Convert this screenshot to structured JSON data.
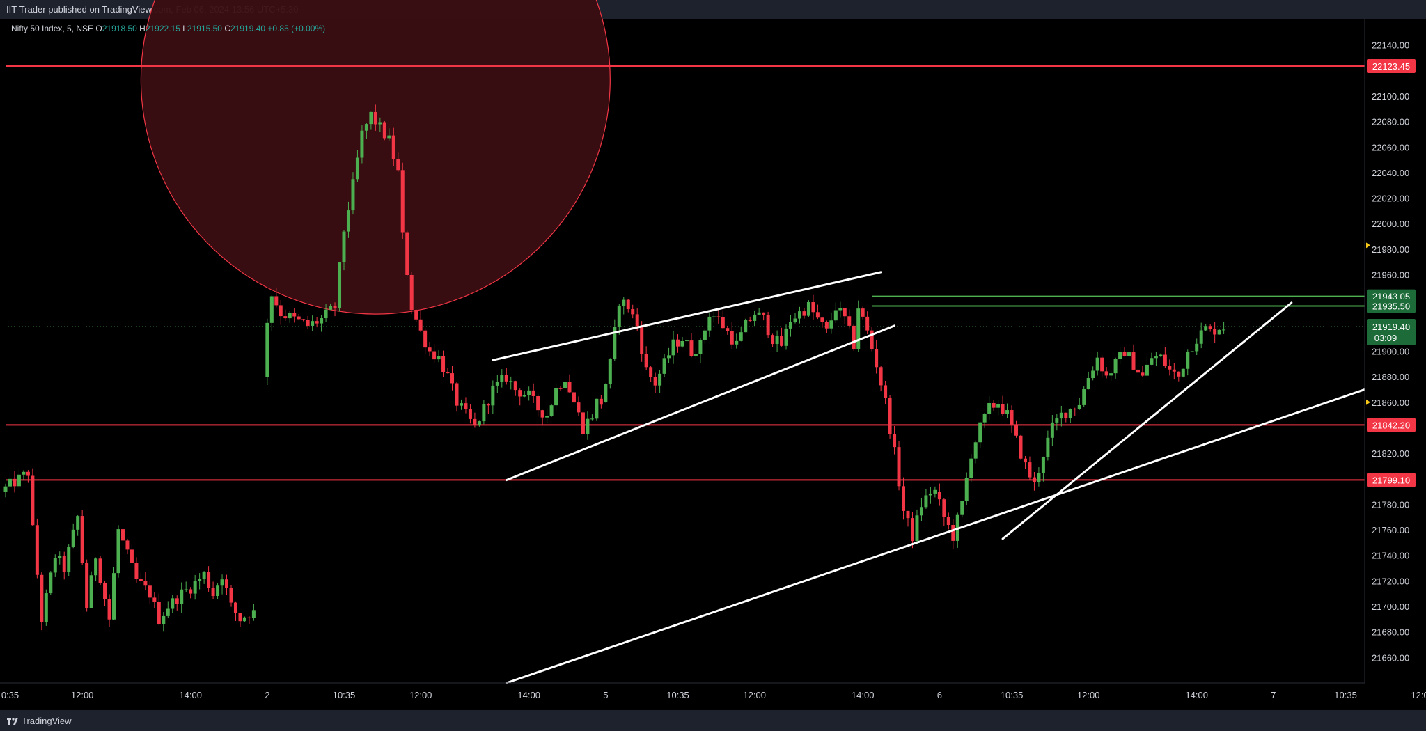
{
  "header": {
    "published_text": "IIT-Trader published on TradingView.com, Feb 06, 2024 13:56 UTC+5:30"
  },
  "legend": {
    "symbol": "Nifty 50 Index, 5, NSE",
    "open_label": "O",
    "open": "21918.50",
    "high_label": "H",
    "high": "21922.15",
    "low_label": "L",
    "low": "21915.50",
    "close_label": "C",
    "close": "21919.40",
    "change": "+0.85 (+0.00%)"
  },
  "footer": {
    "brand": "TradingView"
  },
  "colors": {
    "up": "#4caf50",
    "down": "#f23645",
    "resistance": "#f23645",
    "support_green": "#4caf50",
    "trendline": "#ffffff",
    "circle_fill": "#3a0e12",
    "circle_stroke": "#f23645",
    "price_tag_bg": "#1e6b3a",
    "axis_bg": "#000000",
    "axis_text": "#d1d4dc"
  },
  "chart_data": {
    "type": "candlestick",
    "symbol": "Nifty 50 Index",
    "timeframe": "5",
    "exchange": "NSE",
    "ylim": [
      21640,
      22160
    ],
    "y_ticks": [
      22140,
      22120,
      22100,
      22080,
      22060,
      22040,
      22020,
      22000,
      21980,
      21960,
      21940,
      21920,
      21900,
      21880,
      21860,
      21840,
      21820,
      21800,
      21780,
      21760,
      21740,
      21720,
      21700,
      21680,
      21660
    ],
    "y_tick_labels": [
      "22140.00",
      "",
      "22100.00",
      "22080.00",
      "22060.00",
      "22040.00",
      "22020.00",
      "22000.00",
      "21980.00",
      "21960.00",
      "",
      "",
      "21900.00",
      "21880.00",
      "21860.00",
      "",
      "21820.00",
      "",
      "21780.00",
      "21760.00",
      "21740.00",
      "21720.00",
      "21700.00",
      "21680.00",
      "21660.00"
    ],
    "x_tick_labels": [
      {
        "label": "0:35",
        "t": 1
      },
      {
        "label": "12:00",
        "t": 17
      },
      {
        "label": "14:00",
        "t": 41
      },
      {
        "label": "2",
        "t": 58
      },
      {
        "label": "10:35",
        "t": 75
      },
      {
        "label": "12:00",
        "t": 92
      },
      {
        "label": "14:00",
        "t": 116
      },
      {
        "label": "5",
        "t": 133
      },
      {
        "label": "10:35",
        "t": 149
      },
      {
        "label": "12:00",
        "t": 166
      },
      {
        "label": "14:00",
        "t": 190
      },
      {
        "label": "6",
        "t": 207
      },
      {
        "label": "10:35",
        "t": 223
      },
      {
        "label": "12:00",
        "t": 240
      },
      {
        "label": "14:00",
        "t": 264
      },
      {
        "label": "7",
        "t": 281
      },
      {
        "label": "10:35",
        "t": 297
      },
      {
        "label": "12:00",
        "t": 314
      }
    ],
    "segments": [
      {
        "start_t": 0,
        "end_t": 55,
        "path": [
          [
            0,
            21790
          ],
          [
            6,
            21805
          ],
          [
            7,
            21760
          ],
          [
            9,
            21690
          ],
          [
            12,
            21740
          ],
          [
            14,
            21730
          ],
          [
            17,
            21770
          ],
          [
            19,
            21700
          ],
          [
            21,
            21740
          ],
          [
            24,
            21690
          ],
          [
            26,
            21760
          ],
          [
            28,
            21740
          ],
          [
            30,
            21720
          ],
          [
            33,
            21710
          ],
          [
            35,
            21690
          ],
          [
            37,
            21700
          ],
          [
            40,
            21710
          ],
          [
            42,
            21715
          ],
          [
            45,
            21725
          ],
          [
            47,
            21710
          ],
          [
            49,
            21725
          ],
          [
            51,
            21700
          ],
          [
            53,
            21690
          ],
          [
            55,
            21695
          ]
        ]
      },
      {
        "start_t": 58,
        "end_t": 132,
        "path": [
          [
            58,
            21880
          ],
          [
            59,
            21925
          ],
          [
            60,
            21945
          ],
          [
            62,
            21930
          ],
          [
            65,
            21925
          ],
          [
            68,
            21920
          ],
          [
            71,
            21925
          ],
          [
            74,
            21935
          ],
          [
            76,
            21995
          ],
          [
            78,
            22030
          ],
          [
            80,
            22070
          ],
          [
            82,
            22085
          ],
          [
            84,
            22075
          ],
          [
            86,
            22065
          ],
          [
            88,
            22040
          ],
          [
            89,
            21990
          ],
          [
            91,
            21935
          ],
          [
            93,
            21915
          ],
          [
            95,
            21900
          ],
          [
            97,
            21895
          ],
          [
            99,
            21880
          ],
          [
            101,
            21860
          ],
          [
            103,
            21850
          ],
          [
            105,
            21840
          ],
          [
            107,
            21855
          ],
          [
            109,
            21870
          ],
          [
            112,
            21880
          ],
          [
            114,
            21870
          ],
          [
            117,
            21865
          ],
          [
            119,
            21855
          ],
          [
            121,
            21850
          ],
          [
            123,
            21870
          ],
          [
            125,
            21880
          ],
          [
            127,
            21860
          ],
          [
            129,
            21840
          ],
          [
            131,
            21850
          ],
          [
            132,
            21860
          ]
        ]
      },
      {
        "start_t": 133,
        "end_t": 206,
        "path": [
          [
            133,
            21860
          ],
          [
            135,
            21890
          ],
          [
            137,
            21940
          ],
          [
            139,
            21935
          ],
          [
            141,
            21920
          ],
          [
            143,
            21885
          ],
          [
            145,
            21875
          ],
          [
            147,
            21890
          ],
          [
            149,
            21905
          ],
          [
            151,
            21910
          ],
          [
            153,
            21900
          ],
          [
            155,
            21905
          ],
          [
            157,
            21930
          ],
          [
            159,
            21925
          ],
          [
            161,
            21915
          ],
          [
            163,
            21905
          ],
          [
            165,
            21920
          ],
          [
            167,
            21930
          ],
          [
            169,
            21925
          ],
          [
            171,
            21910
          ],
          [
            173,
            21905
          ],
          [
            175,
            21925
          ],
          [
            177,
            21930
          ],
          [
            179,
            21935
          ],
          [
            181,
            21925
          ],
          [
            183,
            21915
          ],
          [
            185,
            21935
          ],
          [
            187,
            21925
          ],
          [
            189,
            21905
          ],
          [
            190,
            21935
          ],
          [
            192,
            21915
          ],
          [
            194,
            21890
          ],
          [
            196,
            21860
          ],
          [
            198,
            21820
          ],
          [
            200,
            21775
          ],
          [
            202,
            21755
          ],
          [
            204,
            21780
          ],
          [
            206,
            21790
          ]
        ]
      },
      {
        "start_t": 207,
        "end_t": 270,
        "path": [
          [
            207,
            21790
          ],
          [
            209,
            21770
          ],
          [
            211,
            21755
          ],
          [
            213,
            21780
          ],
          [
            215,
            21820
          ],
          [
            217,
            21840
          ],
          [
            219,
            21855
          ],
          [
            221,
            21860
          ],
          [
            223,
            21850
          ],
          [
            225,
            21830
          ],
          [
            227,
            21810
          ],
          [
            229,
            21795
          ],
          [
            231,
            21820
          ],
          [
            233,
            21840
          ],
          [
            235,
            21850
          ],
          [
            237,
            21855
          ],
          [
            239,
            21860
          ],
          [
            241,
            21880
          ],
          [
            243,
            21895
          ],
          [
            245,
            21880
          ],
          [
            247,
            21890
          ],
          [
            249,
            21900
          ],
          [
            251,
            21890
          ],
          [
            253,
            21880
          ],
          [
            255,
            21895
          ],
          [
            257,
            21895
          ],
          [
            259,
            21885
          ],
          [
            261,
            21880
          ],
          [
            263,
            21900
          ],
          [
            265,
            21910
          ],
          [
            267,
            21918
          ],
          [
            268,
            21915
          ],
          [
            270,
            21919
          ]
        ]
      }
    ],
    "horizontal_levels": [
      {
        "price": 22123.45,
        "label": "22123.45",
        "color": "red"
      },
      {
        "price": 21842.2,
        "label": "21842.20",
        "color": "red"
      },
      {
        "price": 21799.1,
        "label": "21799.10",
        "color": "red"
      },
      {
        "price": 21943.05,
        "label": "21943.05",
        "color": "green",
        "start_t": 192
      },
      {
        "price": 21935.5,
        "label": "21935.50",
        "color": "green",
        "start_t": 192
      }
    ],
    "last_price": {
      "price": 21919.4,
      "label": "21919.40",
      "countdown": "03:09"
    },
    "trendlines": [
      {
        "t1": 108,
        "p1": 21893,
        "t2": 194,
        "p2": 21962
      },
      {
        "t1": 111,
        "p1": 21799,
        "t2": 197,
        "p2": 21920
      },
      {
        "t1": 111,
        "p1": 21640,
        "t2": 329,
        "p2": 21870
      },
      {
        "t1": 221,
        "p1": 21753,
        "t2": 285,
        "p2": 21938
      }
    ],
    "highlight_circle": {
      "center_t": 82,
      "center_price": 22113,
      "radius_t": 52
    },
    "axis_markers": [
      {
        "price": 21983
      },
      {
        "price": 21860
      }
    ]
  }
}
